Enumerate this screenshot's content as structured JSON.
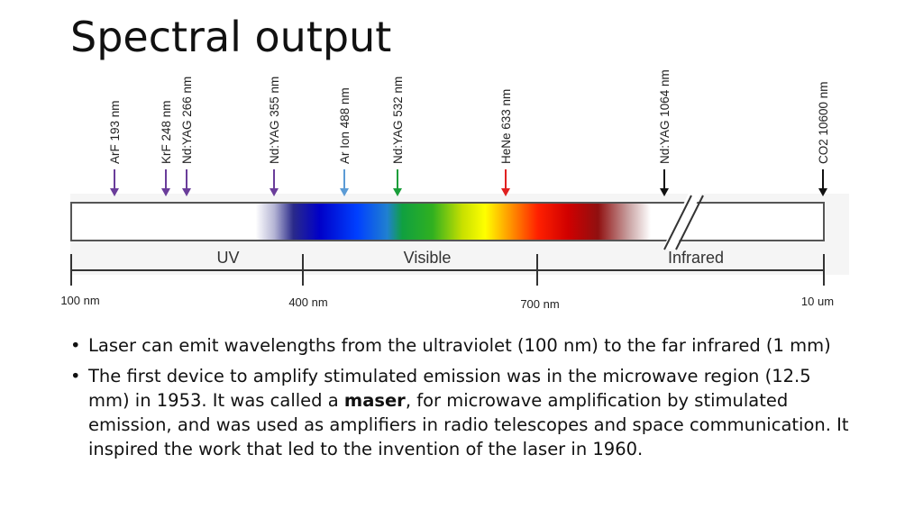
{
  "slide": {
    "title": "Spectral output"
  },
  "diagram": {
    "lasers": [
      {
        "label": "ArF 193 nm",
        "color": "#6a3d9a"
      },
      {
        "label": "KrF 248 nm",
        "color": "#6a3d9a"
      },
      {
        "label": "Nd:YAG 266 nm",
        "color": "#6a3d9a"
      },
      {
        "label": "Nd:YAG 355 nm",
        "color": "#6a3d9a"
      },
      {
        "label": "Ar Ion 488 nm",
        "color": "#5b9bd5"
      },
      {
        "label": "Nd:YAG 532 nm",
        "color": "#1a9e3a"
      },
      {
        "label": "HeNe 633 nm",
        "color": "#e02020"
      },
      {
        "label": "Nd:YAG 1064 nm",
        "color": "#111111"
      },
      {
        "label": "CO2  10600 nm",
        "color": "#111111"
      }
    ],
    "regions": [
      "UV",
      "Visible",
      "Infrared"
    ],
    "ticks": [
      "100 nm",
      "400 nm",
      "700 nm",
      "10 um"
    ]
  },
  "bullets": [
    {
      "parts": [
        "Laser can emit wavelengths from the ultraviolet (100 nm) to the far infrared (1 mm)"
      ]
    },
    {
      "before": "The first device to amplify stimulated emission was in the microwave region (12.5 mm) in 1953. It was called a ",
      "bold": "maser",
      "after": ", for microwave amplification by stimulated emission, and was used as amplifiers in radio telescopes and space communication. It inspired the work that led to the invention of the laser in 1960."
    }
  ]
}
